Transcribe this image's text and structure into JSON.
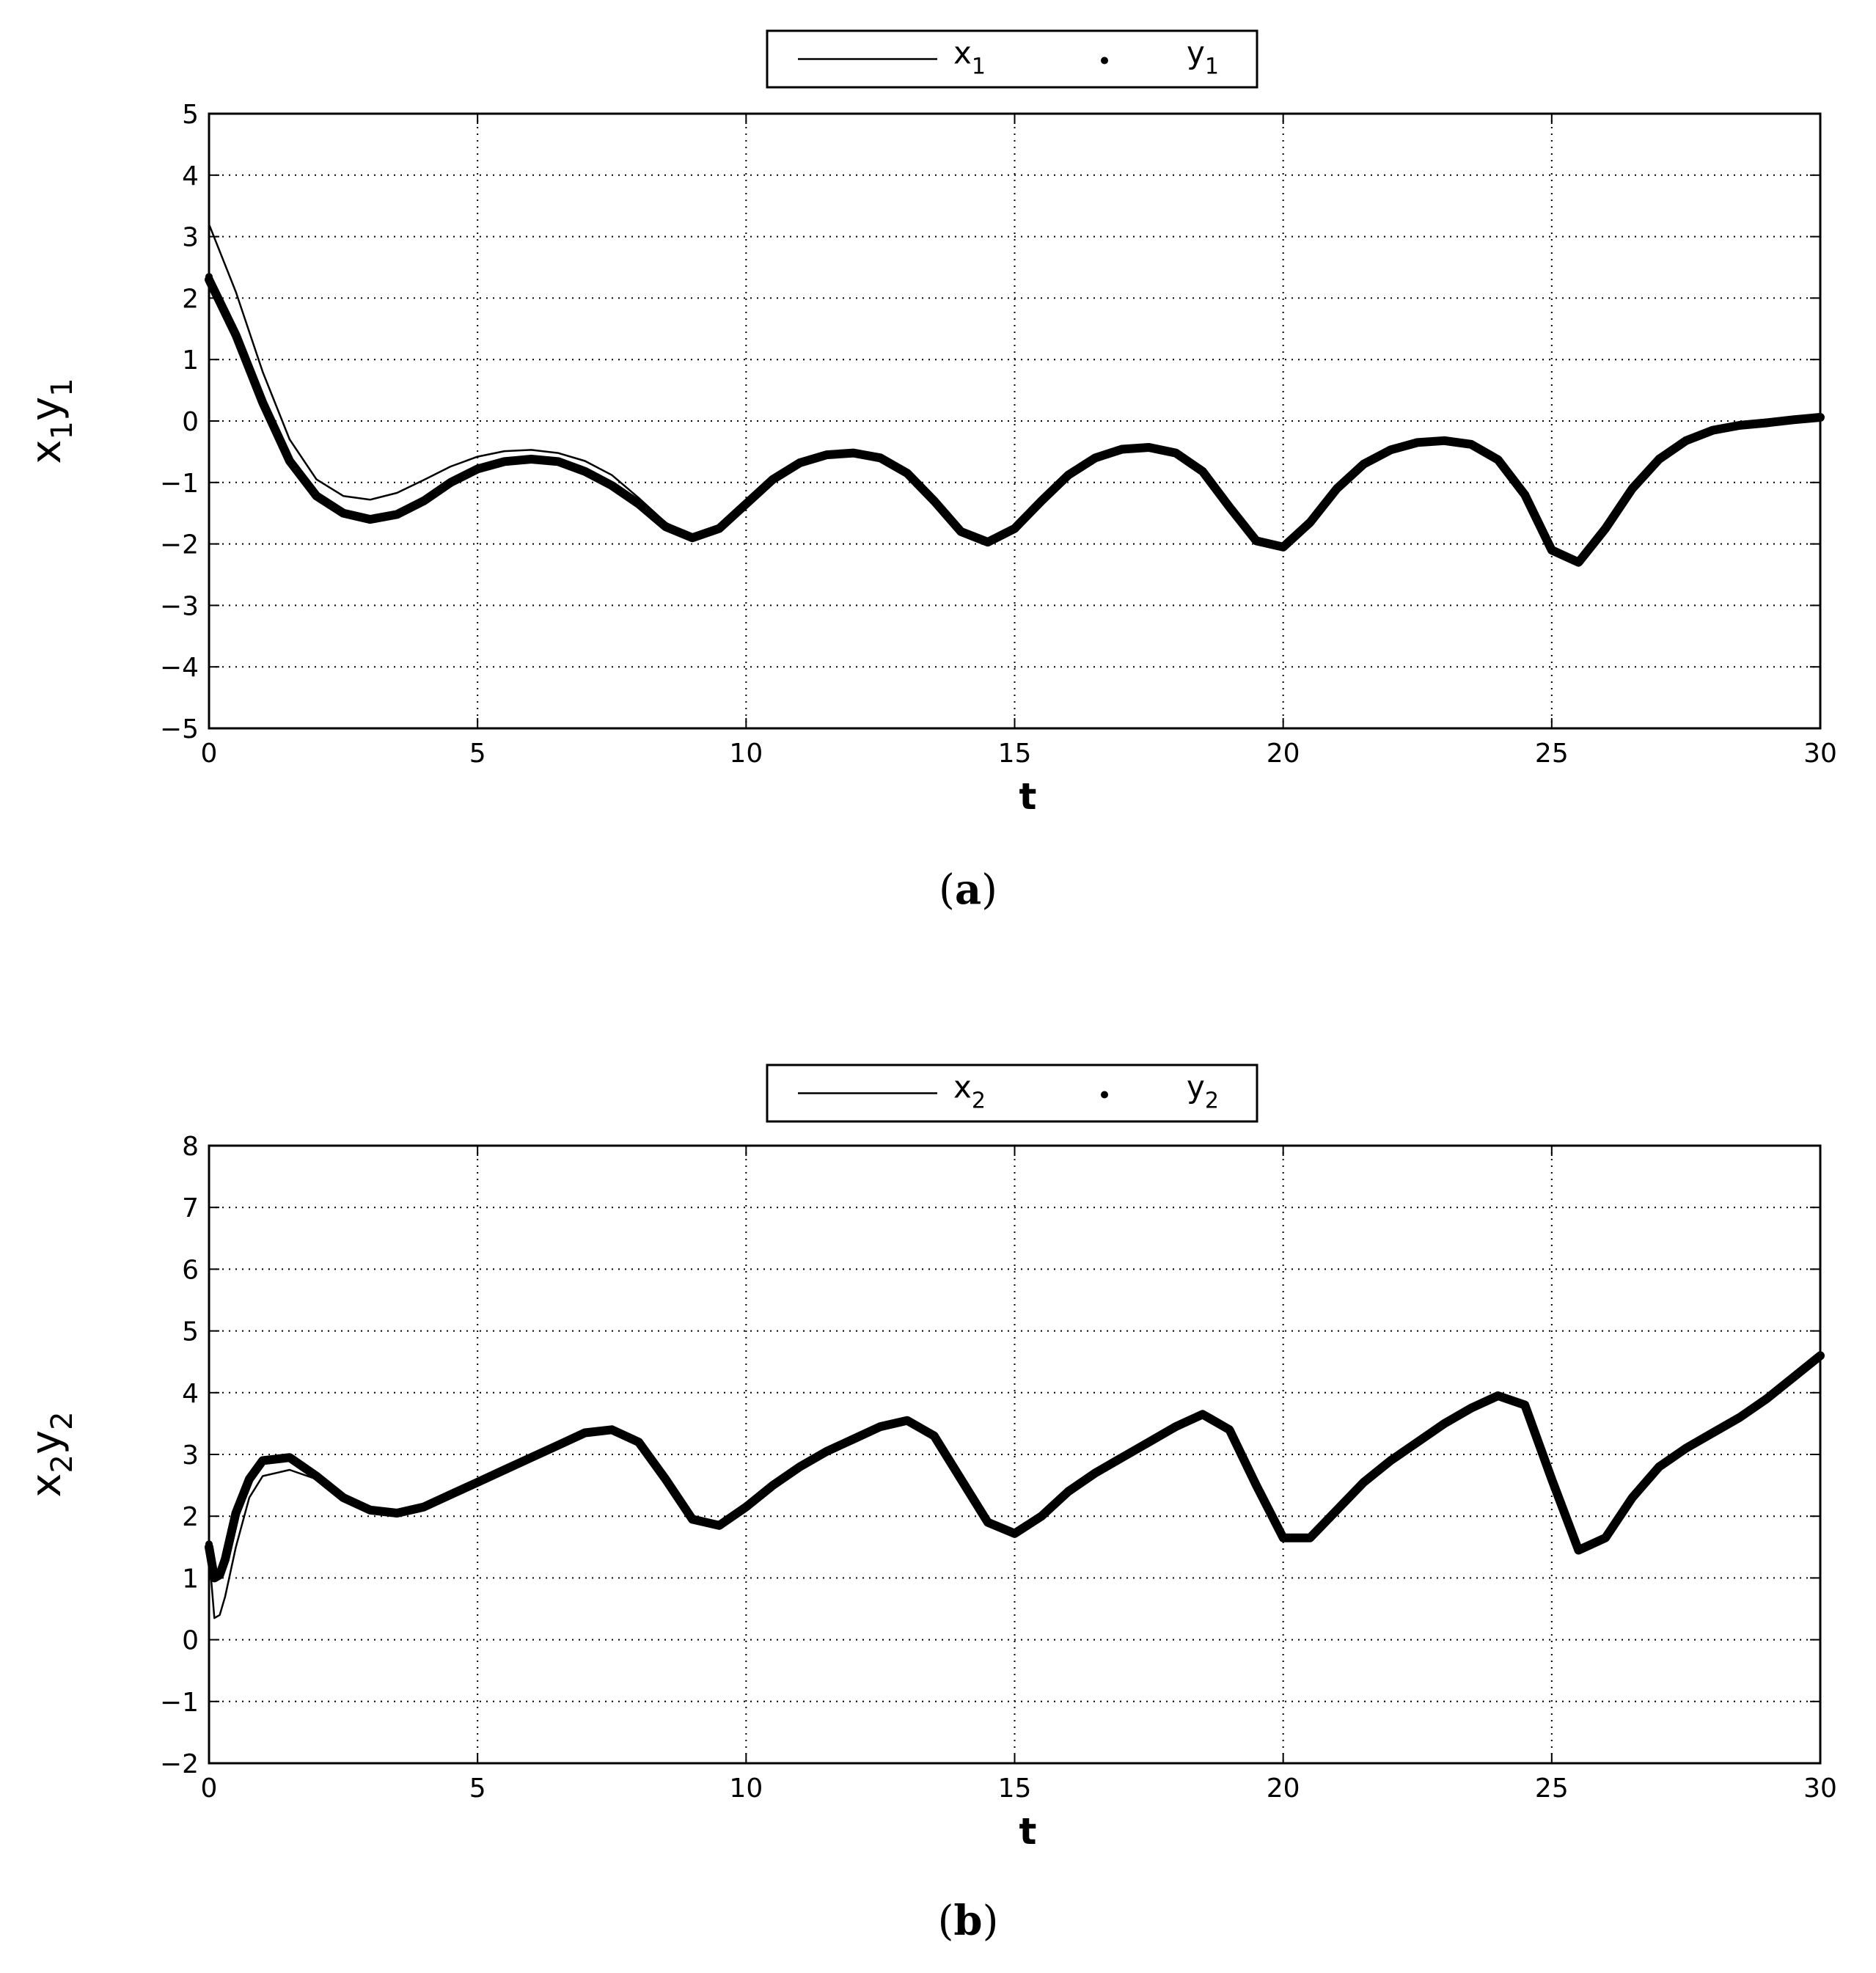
{
  "chart_data": [
    {
      "type": "line",
      "panel_label": "a",
      "xlabel": "t",
      "ylabel": {
        "parts": [
          {
            "base": "x",
            "sub": "1"
          },
          {
            "base": "y",
            "sub": "1"
          }
        ]
      },
      "xlim": [
        0,
        30
      ],
      "ylim": [
        -5,
        5
      ],
      "xticks": [
        0,
        5,
        10,
        15,
        20,
        25,
        30
      ],
      "yticks": [
        -5,
        -4,
        -3,
        -2,
        -1,
        0,
        1,
        2,
        3,
        4,
        5
      ],
      "grid": true,
      "legend_position": "top-center-outside",
      "series": [
        {
          "name": {
            "base": "x",
            "sub": "1"
          },
          "style": "thin-line",
          "color": "#000000",
          "x": [
            0,
            0.5,
            1,
            1.5,
            2,
            2.5,
            3,
            3.5,
            4,
            4.5,
            5,
            5.5,
            6,
            6.5,
            7,
            7.5,
            8,
            8.5,
            9,
            9.5,
            10,
            10.5,
            11,
            11.5,
            12,
            12.5,
            13,
            13.5,
            14,
            14.5,
            15,
            15.5,
            16,
            16.5,
            17,
            17.5,
            18,
            18.5,
            19,
            19.5,
            20,
            20.5,
            21,
            21.5,
            22,
            22.5,
            23,
            23.5,
            24,
            24.5,
            25,
            25.5,
            26,
            26.5,
            27,
            27.5,
            28,
            28.5,
            29,
            29.5,
            30
          ],
          "y": [
            3.2,
            2.1,
            0.8,
            -0.3,
            -0.95,
            -1.22,
            -1.28,
            -1.17,
            -0.96,
            -0.74,
            -0.58,
            -0.49,
            -0.47,
            -0.52,
            -0.65,
            -0.88,
            -1.25,
            -1.65,
            -1.88,
            -1.75,
            -1.35,
            -0.95,
            -0.68,
            -0.55,
            -0.52,
            -0.6,
            -0.85,
            -1.3,
            -1.8,
            -1.97,
            -1.75,
            -1.3,
            -0.88,
            -0.6,
            -0.46,
            -0.43,
            -0.52,
            -0.82,
            -1.4,
            -1.95,
            -2.05,
            -1.65,
            -1.1,
            -0.7,
            -0.47,
            -0.35,
            -0.32,
            -0.38,
            -0.63,
            -1.2,
            -2.1,
            -2.3,
            -1.75,
            -1.1,
            -0.62,
            -0.32,
            -0.15,
            -0.07,
            -0.03,
            0.02,
            0.06
          ]
        },
        {
          "name": {
            "base": "y",
            "sub": "1"
          },
          "style": "thick-dots",
          "color": "#000000",
          "x": [
            0,
            0.5,
            1,
            1.5,
            2,
            2.5,
            3,
            3.5,
            4,
            4.5,
            5,
            5.5,
            6,
            6.5,
            7,
            7.5,
            8,
            8.5,
            9,
            9.5,
            10,
            10.5,
            11,
            11.5,
            12,
            12.5,
            13,
            13.5,
            14,
            14.5,
            15,
            15.5,
            16,
            16.5,
            17,
            17.5,
            18,
            18.5,
            19,
            19.5,
            20,
            20.5,
            21,
            21.5,
            22,
            22.5,
            23,
            23.5,
            24,
            24.5,
            25,
            25.5,
            26,
            26.5,
            27,
            27.5,
            28,
            28.5,
            29,
            29.5,
            30
          ],
          "y": [
            2.3,
            1.4,
            0.3,
            -0.65,
            -1.22,
            -1.5,
            -1.6,
            -1.52,
            -1.3,
            -1.0,
            -0.78,
            -0.66,
            -0.62,
            -0.66,
            -0.82,
            -1.05,
            -1.35,
            -1.72,
            -1.9,
            -1.75,
            -1.35,
            -0.95,
            -0.68,
            -0.55,
            -0.52,
            -0.6,
            -0.85,
            -1.3,
            -1.8,
            -1.97,
            -1.75,
            -1.3,
            -0.88,
            -0.6,
            -0.46,
            -0.43,
            -0.52,
            -0.82,
            -1.4,
            -1.95,
            -2.05,
            -1.65,
            -1.1,
            -0.7,
            -0.47,
            -0.35,
            -0.32,
            -0.38,
            -0.63,
            -1.2,
            -2.1,
            -2.3,
            -1.75,
            -1.1,
            -0.62,
            -0.32,
            -0.15,
            -0.07,
            -0.03,
            0.02,
            0.06
          ]
        }
      ]
    },
    {
      "type": "line",
      "panel_label": "b",
      "xlabel": "t",
      "ylabel": {
        "parts": [
          {
            "base": "x",
            "sub": "2"
          },
          {
            "base": "y",
            "sub": "2"
          }
        ]
      },
      "xlim": [
        0,
        30
      ],
      "ylim": [
        -2,
        8
      ],
      "xticks": [
        0,
        5,
        10,
        15,
        20,
        25,
        30
      ],
      "yticks": [
        -2,
        -1,
        0,
        1,
        2,
        3,
        4,
        5,
        6,
        7,
        8
      ],
      "grid": true,
      "legend_position": "top-center-outside",
      "series": [
        {
          "name": {
            "base": "x",
            "sub": "2"
          },
          "style": "thin-line",
          "color": "#000000",
          "x": [
            0,
            0.1,
            0.2,
            0.3,
            0.5,
            0.75,
            1,
            1.5,
            2,
            2.5,
            3,
            3.5,
            4,
            4.5,
            5,
            5.5,
            6,
            6.5,
            7,
            7.5,
            8,
            8.5,
            9,
            9.5,
            10,
            10.5,
            11,
            11.5,
            12,
            12.5,
            13,
            13.5,
            14,
            14.5,
            15,
            15.5,
            16,
            16.5,
            17,
            17.5,
            18,
            18.5,
            19,
            19.5,
            20,
            20.5,
            21,
            21.5,
            22,
            22.5,
            23,
            23.5,
            24,
            24.5,
            25,
            25.5,
            26,
            26.5,
            27,
            27.5,
            28,
            28.5,
            29,
            29.5,
            30
          ],
          "y": [
            1.4,
            0.35,
            0.4,
            0.7,
            1.5,
            2.3,
            2.65,
            2.75,
            2.6,
            2.3,
            2.1,
            2.05,
            2.15,
            2.35,
            2.55,
            2.75,
            2.95,
            3.15,
            3.35,
            3.4,
            3.2,
            2.6,
            1.95,
            1.85,
            2.15,
            2.5,
            2.8,
            3.05,
            3.25,
            3.45,
            3.55,
            3.3,
            2.6,
            1.9,
            1.72,
            2.0,
            2.4,
            2.7,
            2.95,
            3.2,
            3.45,
            3.65,
            3.4,
            2.5,
            1.65,
            1.65,
            2.1,
            2.55,
            2.9,
            3.2,
            3.5,
            3.75,
            3.95,
            3.8,
            2.6,
            1.45,
            1.65,
            2.3,
            2.8,
            3.1,
            3.35,
            3.6,
            3.9,
            4.25,
            4.6
          ]
        },
        {
          "name": {
            "base": "y",
            "sub": "2"
          },
          "style": "thick-dots",
          "color": "#000000",
          "x": [
            0,
            0.1,
            0.2,
            0.3,
            0.5,
            0.75,
            1,
            1.5,
            2,
            2.5,
            3,
            3.5,
            4,
            4.5,
            5,
            5.5,
            6,
            6.5,
            7,
            7.5,
            8,
            8.5,
            9,
            9.5,
            10,
            10.5,
            11,
            11.5,
            12,
            12.5,
            13,
            13.5,
            14,
            14.5,
            15,
            15.5,
            16,
            16.5,
            17,
            17.5,
            18,
            18.5,
            19,
            19.5,
            20,
            20.5,
            21,
            21.5,
            22,
            22.5,
            23,
            23.5,
            24,
            24.5,
            25,
            25.5,
            26,
            26.5,
            27,
            27.5,
            28,
            28.5,
            29,
            29.5,
            30
          ],
          "y": [
            1.5,
            1.0,
            1.05,
            1.3,
            2.05,
            2.6,
            2.9,
            2.95,
            2.65,
            2.3,
            2.1,
            2.05,
            2.15,
            2.35,
            2.55,
            2.75,
            2.95,
            3.15,
            3.35,
            3.4,
            3.2,
            2.6,
            1.95,
            1.85,
            2.15,
            2.5,
            2.8,
            3.05,
            3.25,
            3.45,
            3.55,
            3.3,
            2.6,
            1.9,
            1.72,
            2.0,
            2.4,
            2.7,
            2.95,
            3.2,
            3.45,
            3.65,
            3.4,
            2.5,
            1.65,
            1.65,
            2.1,
            2.55,
            2.9,
            3.2,
            3.5,
            3.75,
            3.95,
            3.8,
            2.6,
            1.45,
            1.65,
            2.3,
            2.8,
            3.1,
            3.35,
            3.6,
            3.9,
            4.25,
            4.6
          ]
        }
      ]
    }
  ]
}
